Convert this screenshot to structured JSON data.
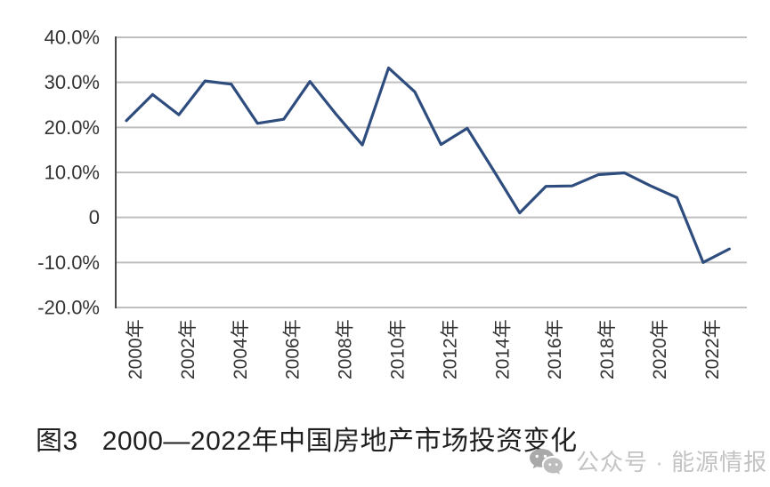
{
  "chart_data": {
    "type": "line",
    "title": "",
    "x": [
      2000,
      2001,
      2002,
      2003,
      2004,
      2005,
      2006,
      2007,
      2008,
      2009,
      2010,
      2011,
      2012,
      2013,
      2014,
      2015,
      2016,
      2017,
      2018,
      2019,
      2020,
      2021,
      2022,
      2023
    ],
    "x_tick_labels": [
      "2000年",
      "2002年",
      "2004年",
      "2006年",
      "2008年",
      "2010年",
      "2012年",
      "2014年",
      "2016年",
      "2018年",
      "2020年",
      "2022年"
    ],
    "y_ticks": [
      {
        "value": 40,
        "label": "40.0%"
      },
      {
        "value": 30,
        "label": "30.0%"
      },
      {
        "value": 20,
        "label": "20.0%"
      },
      {
        "value": 10,
        "label": "10.0%"
      },
      {
        "value": 0,
        "label": "0"
      },
      {
        "value": -10,
        "label": "-10.0%"
      },
      {
        "value": -20,
        "label": "-20.0%"
      }
    ],
    "ylim": [
      -20,
      40
    ],
    "grid": true,
    "legend": false,
    "series": [
      {
        "values": [
          21.5,
          27.3,
          22.8,
          30.3,
          29.6,
          20.9,
          21.8,
          30.2,
          22.9,
          16.1,
          33.2,
          27.9,
          16.2,
          19.8,
          10.5,
          1.0,
          6.9,
          7.0,
          9.5,
          9.9,
          7.0,
          4.4,
          -10.0,
          -7.0
        ]
      }
    ]
  },
  "colors": {
    "line": "#2e4d7e",
    "gridline": "#bfbfbf",
    "axis": "#4a4a4a",
    "tick_text": "#333333",
    "caption_text": "#1f1f1f",
    "watermark_text": "#c3c3c3",
    "watermark_icon_dark": "#a9a9a9",
    "watermark_icon_light": "#bdbdbd"
  },
  "caption": {
    "figure_label": "图3",
    "title_text": "2000—2022年中国房地产市场投资变化"
  },
  "watermark": {
    "icon": "wechat-icon",
    "text": "公众号 · 能源情报"
  }
}
